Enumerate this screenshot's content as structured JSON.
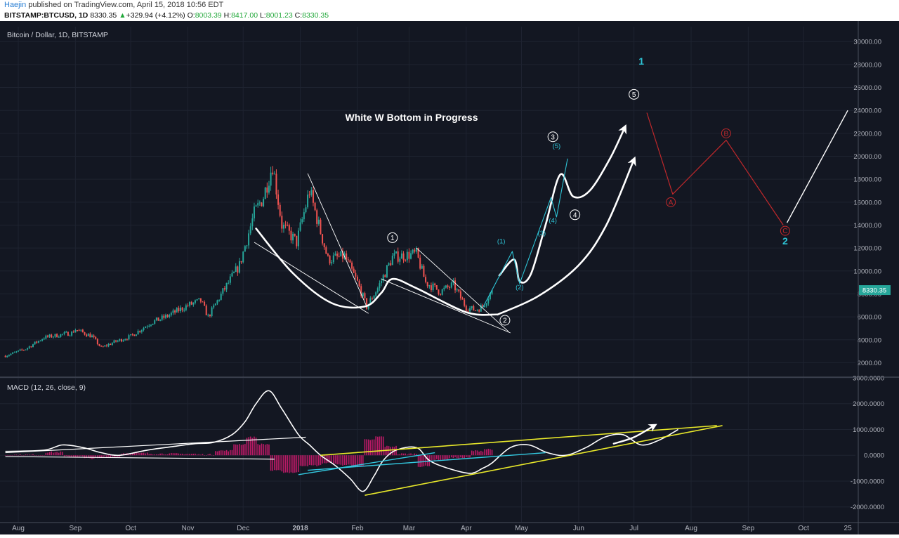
{
  "header": {
    "author": "Haejin",
    "published": "published on TradingView.com, April 15, 2018 10:56 EDT",
    "symbol": "BITSTAMP:BTCUSD, 1D",
    "last": "8330.35",
    "change": "+329.94 (+4.12%)",
    "open_label": "O:",
    "open": "8003.39",
    "high_label": "H:",
    "high": "8417.00",
    "low_label": "L:",
    "low": "8001.23",
    "close_label": "C:",
    "close": "8330.35"
  },
  "colors": {
    "background": "#131722",
    "up": "#26a69a",
    "down": "#ef5350",
    "annotation": "#ffffff",
    "wave_sub": "#2ec4d6",
    "correction": "#c0282b",
    "macd_trend": "#e8e82a",
    "macd_trend2": "#33c9e0",
    "histogram": "#d81b72"
  },
  "chart_data": [
    {
      "type": "candlestick",
      "title": "Bitcoin / Dollar, 1D, BITSTAMP",
      "x_tick_labels": [
        "Aug",
        "Sep",
        "Oct",
        "Nov",
        "Dec",
        "2018",
        "Feb",
        "Mar",
        "Apr",
        "May",
        "Jun",
        "Jul",
        "Aug",
        "Sep",
        "Oct",
        "25"
      ],
      "y_ticks": [
        2000,
        4000,
        6000,
        8000,
        10000,
        12000,
        14000,
        16000,
        18000,
        20000,
        22000,
        24000,
        26000,
        28000,
        30000
      ],
      "y_tick_labels": [
        "2000.00",
        "4000.00",
        "6000.00",
        "8000.00",
        "10000.00",
        "12000.00",
        "14000.00",
        "16000.00",
        "18000.00",
        "20000.00",
        "22000.00",
        "24000.00",
        "26000.00",
        "28000.00",
        "30000.00"
      ],
      "ylim": [
        800,
        31300
      ],
      "last_price_label": "8330.35",
      "price_path": [
        [
          "2017-07-25",
          2600
        ],
        [
          "2017-08-05",
          3200
        ],
        [
          "2017-08-15",
          4200
        ],
        [
          "2017-08-30",
          4600
        ],
        [
          "2017-09-01",
          4900
        ],
        [
          "2017-09-10",
          4300
        ],
        [
          "2017-09-15",
          3300
        ],
        [
          "2017-09-22",
          3800
        ],
        [
          "2017-10-01",
          4300
        ],
        [
          "2017-10-12",
          5500
        ],
        [
          "2017-10-20",
          6000
        ],
        [
          "2017-11-01",
          7000
        ],
        [
          "2017-11-08",
          7400
        ],
        [
          "2017-11-12",
          6000
        ],
        [
          "2017-11-20",
          8200
        ],
        [
          "2017-11-29",
          10500
        ],
        [
          "2017-12-07",
          15000
        ],
        [
          "2017-12-12",
          16500
        ],
        [
          "2017-12-17",
          19300
        ],
        [
          "2017-12-22",
          14000
        ],
        [
          "2017-12-30",
          12500
        ],
        [
          "2018-01-06",
          17000
        ],
        [
          "2018-01-16",
          11000
        ],
        [
          "2018-01-25",
          11300
        ],
        [
          "2018-02-01",
          9000
        ],
        [
          "2018-02-06",
          6900
        ],
        [
          "2018-02-12",
          8500
        ],
        [
          "2018-02-20",
          11200
        ],
        [
          "2018-03-05",
          11500
        ],
        [
          "2018-03-10",
          9000
        ],
        [
          "2018-03-18",
          8200
        ],
        [
          "2018-03-25",
          8800
        ],
        [
          "2018-04-01",
          6800
        ],
        [
          "2018-04-06",
          6600
        ],
        [
          "2018-04-10",
          6900
        ],
        [
          "2018-04-15",
          8330
        ]
      ],
      "annotations": {
        "headline": "White W Bottom in Progress",
        "wave_labels": [
          {
            "text": "1",
            "date": "2018-02-20",
            "price": 12900
          },
          {
            "text": "2",
            "date": "2018-04-22",
            "price": 5700
          },
          {
            "text": "3",
            "date": "2018-05-18",
            "price": 21700
          },
          {
            "text": "4",
            "date": "2018-05-30",
            "price": 14900
          },
          {
            "text": "5",
            "date": "2018-07-01",
            "price": 25400
          }
        ],
        "sub_wave_labels": [
          {
            "text": "(1)",
            "date": "2018-04-20",
            "price": 12400
          },
          {
            "text": "(2)",
            "date": "2018-04-30",
            "price": 8400
          },
          {
            "text": "(3)",
            "date": "2018-05-12",
            "price": 13100
          },
          {
            "text": "(4)",
            "date": "2018-05-18",
            "price": 14200
          },
          {
            "text": "(5)",
            "date": "2018-05-20",
            "price": 20700
          }
        ],
        "correction_labels": [
          {
            "text": "A",
            "date": "2018-07-21",
            "price": 16000
          },
          {
            "text": "B",
            "date": "2018-08-20",
            "price": 22000
          },
          {
            "text": "C",
            "date": "2018-09-21",
            "price": 13500
          }
        ],
        "cycle_labels": [
          {
            "text": "1",
            "date": "2018-07-05",
            "price": 28000
          },
          {
            "text": "2",
            "date": "2018-09-21",
            "price": 12300
          }
        ]
      }
    },
    {
      "type": "line",
      "title": "MACD (12, 26, close, 9)",
      "y_ticks": [
        -2000,
        -1000,
        0,
        1000,
        2000,
        3000
      ],
      "y_tick_labels": [
        "-2000.0000",
        "-1000.0000",
        "0.0000",
        "1000.0000",
        "2000.0000",
        "3000.0000"
      ],
      "ylim": [
        -2580,
        3000
      ],
      "macd_path": [
        [
          "2017-07-25",
          150
        ],
        [
          "2017-08-15",
          200
        ],
        [
          "2017-08-25",
          400
        ],
        [
          "2017-09-05",
          300
        ],
        [
          "2017-09-15",
          100
        ],
        [
          "2017-09-25",
          0
        ],
        [
          "2017-10-10",
          200
        ],
        [
          "2017-10-25",
          350
        ],
        [
          "2017-11-05",
          450
        ],
        [
          "2017-11-15",
          500
        ],
        [
          "2017-11-25",
          800
        ],
        [
          "2017-12-02",
          1300
        ],
        [
          "2017-12-08",
          2000
        ],
        [
          "2017-12-15",
          2500
        ],
        [
          "2017-12-22",
          1800
        ],
        [
          "2017-12-31",
          800
        ],
        [
          "2018-01-06",
          400
        ],
        [
          "2018-01-12",
          0
        ],
        [
          "2018-01-20",
          -400
        ],
        [
          "2018-01-28",
          -900
        ],
        [
          "2018-02-04",
          -1400
        ],
        [
          "2018-02-10",
          -800
        ],
        [
          "2018-02-15",
          -200
        ],
        [
          "2018-02-22",
          200
        ],
        [
          "2018-03-05",
          300
        ],
        [
          "2018-03-12",
          -200
        ],
        [
          "2018-03-22",
          -500
        ],
        [
          "2018-04-03",
          -700
        ],
        [
          "2018-04-10",
          -500
        ],
        [
          "2018-04-15",
          -300
        ],
        [
          "2018-04-25",
          300
        ],
        [
          "2018-05-05",
          400
        ],
        [
          "2018-05-15",
          100
        ],
        [
          "2018-05-25",
          0
        ],
        [
          "2018-06-05",
          300
        ],
        [
          "2018-06-15",
          700
        ],
        [
          "2018-06-25",
          800
        ],
        [
          "2018-07-05",
          400
        ],
        [
          "2018-07-15",
          600
        ],
        [
          "2018-07-25",
          1000
        ]
      ]
    }
  ]
}
